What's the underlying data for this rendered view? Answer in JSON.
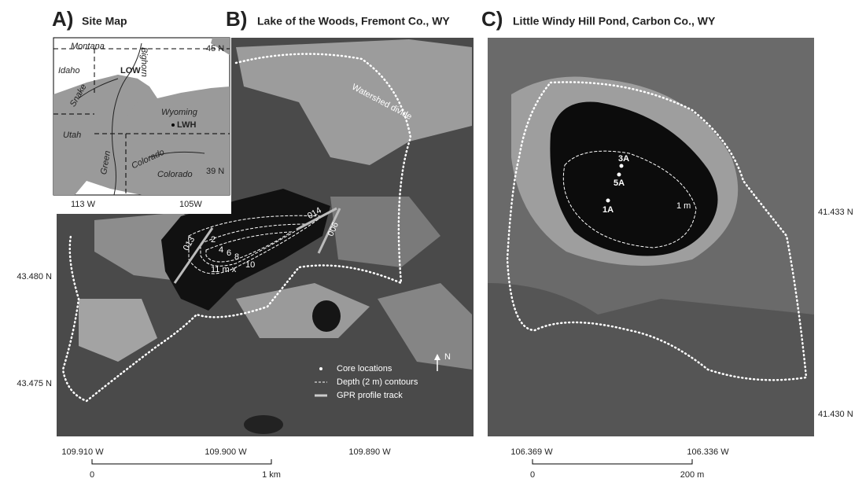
{
  "panel_a": {
    "label": "A)",
    "title": "Site Map",
    "places": {
      "montana": "Montana",
      "idaho": "Idaho",
      "low": "LOW",
      "bighorn": "Bighorn",
      "snake": "Snake",
      "wyoming": "Wyoming",
      "lwh": "LWH",
      "utah": "Utah",
      "green": "Green",
      "colorado_river": "Colorado",
      "colorado_state": "Colorado"
    },
    "lat_labels": [
      "45 N",
      "39 N"
    ],
    "lon_labels": [
      "113 W",
      "105W"
    ]
  },
  "panel_b": {
    "label": "B)",
    "title": "Lake of the Woods, Fremont Co., WY",
    "divide_label": "Watershed divide",
    "contour_labels": [
      "2",
      "4",
      "6",
      "8",
      "10",
      "11 m x"
    ],
    "gpr_labels": [
      "013",
      "014",
      "006"
    ],
    "legend": [
      "Core locations",
      "Depth (2 m) contours",
      "GPR profile track"
    ],
    "north": "N",
    "lat_labels": [
      "43.480 N",
      "43.475 N"
    ],
    "lon_labels": [
      "109.910 W",
      "109.900 W",
      "109.890 W"
    ],
    "scale": [
      "0",
      "1 km"
    ]
  },
  "panel_c": {
    "label": "C)",
    "title": "Little Windy Hill Pond, Carbon Co., WY",
    "cores": [
      "3A",
      "5A",
      "1A"
    ],
    "contour_label": "1 m",
    "lat_labels": [
      "41.433 N",
      "41.430 N"
    ],
    "lon_labels": [
      "106.369 W",
      "106.336 W"
    ],
    "scale": [
      "0",
      "200 m"
    ]
  }
}
